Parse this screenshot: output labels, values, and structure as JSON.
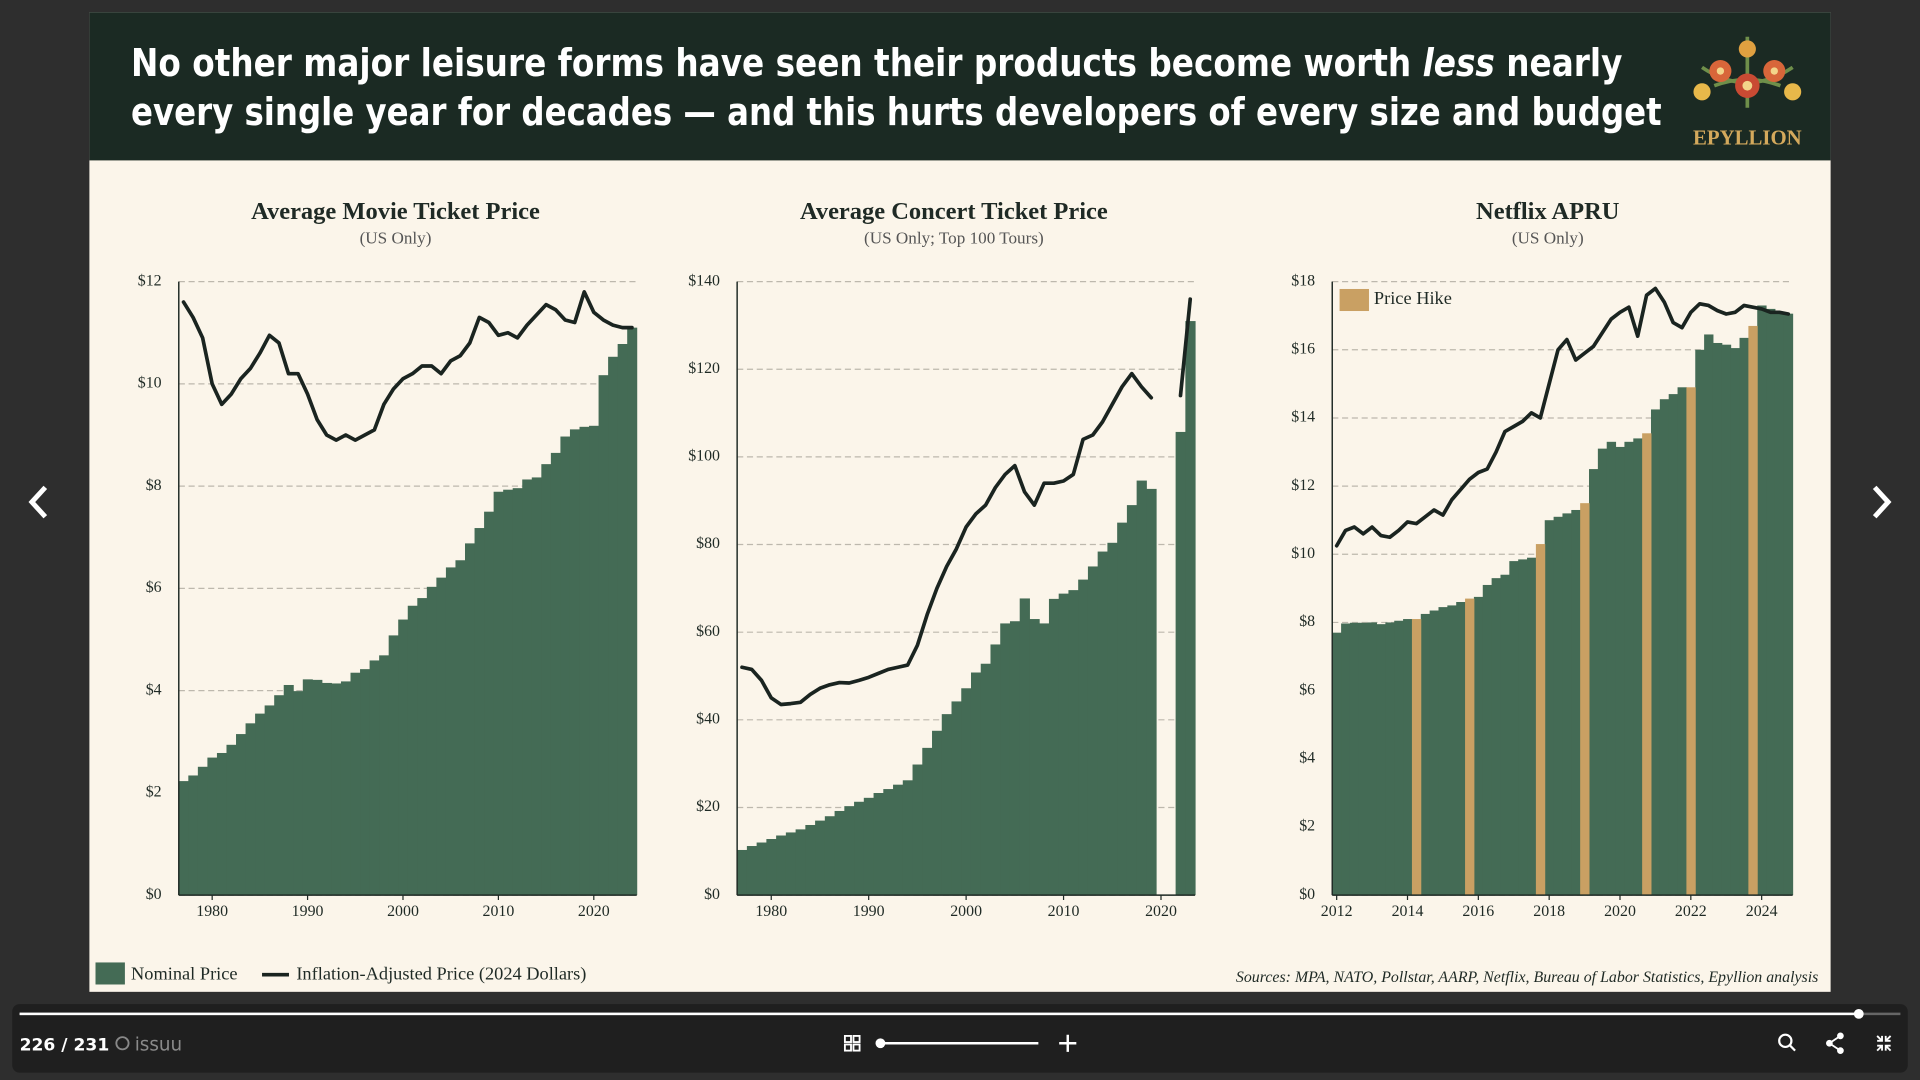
{
  "header": {
    "title_start": "No other major leisure forms have seen their products become worth ",
    "title_emphasis": "less",
    "title_end": " nearly",
    "title_line2": "every single year for decades — and this hurts developers of every size and budget",
    "logo": "EPYLLION"
  },
  "sources": "Sources: MPA, NATO, Pollstar, AARP, Netflix, Bureau of Labor Statistics, Epyllion analysis",
  "viewer": {
    "page_indicator": "226 / 231",
    "brand": "issuu"
  },
  "chart_data": [
    {
      "type": "bar",
      "title": "Average Movie Ticket Price",
      "subtitle": "(US Only)",
      "x": [
        1977,
        1978,
        1979,
        1980,
        1981,
        1982,
        1983,
        1984,
        1985,
        1986,
        1987,
        1988,
        1989,
        1990,
        1991,
        1992,
        1993,
        1994,
        1995,
        1996,
        1997,
        1998,
        1999,
        2000,
        2001,
        2002,
        2003,
        2004,
        2005,
        2006,
        2007,
        2008,
        2009,
        2010,
        2011,
        2012,
        2013,
        2014,
        2015,
        2016,
        2017,
        2018,
        2019,
        2020,
        2021,
        2022,
        2023,
        2024
      ],
      "series": [
        {
          "name": "Nominal Price",
          "type": "bar",
          "color": "#446b55",
          "values": [
            2.23,
            2.34,
            2.51,
            2.69,
            2.78,
            2.94,
            3.15,
            3.36,
            3.55,
            3.71,
            3.91,
            4.11,
            3.99,
            4.22,
            4.21,
            4.15,
            4.14,
            4.18,
            4.35,
            4.42,
            4.59,
            4.69,
            5.08,
            5.39,
            5.66,
            5.81,
            6.03,
            6.21,
            6.41,
            6.55,
            6.88,
            7.18,
            7.5,
            7.89,
            7.93,
            7.96,
            8.13,
            8.17,
            8.43,
            8.65,
            8.97,
            9.11,
            9.16,
            9.18,
            10.17,
            10.53,
            10.78,
            11.1
          ]
        },
        {
          "name": "Inflation-Adjusted Price (2024 Dollars)",
          "type": "line",
          "color": "#1a2420",
          "values": [
            11.6,
            11.3,
            10.9,
            10.0,
            9.6,
            9.8,
            10.1,
            10.3,
            10.6,
            10.95,
            10.8,
            10.2,
            10.2,
            9.8,
            9.3,
            9.0,
            8.9,
            9.0,
            8.9,
            9.0,
            9.1,
            9.6,
            9.9,
            10.1,
            10.2,
            10.35,
            10.35,
            10.2,
            10.45,
            10.55,
            10.8,
            11.3,
            11.2,
            10.95,
            11.0,
            10.9,
            11.15,
            11.35,
            11.55,
            11.45,
            11.25,
            11.2,
            11.8,
            11.4,
            11.25,
            11.15,
            11.1,
            11.1
          ]
        }
      ],
      "xlim": [
        1976.5,
        2024.5
      ],
      "xticks": [
        1980,
        1990,
        2000,
        2010,
        2020
      ],
      "ylim": [
        0,
        12
      ],
      "yticks": [
        {
          "value": 0,
          "label": "$0"
        },
        {
          "value": 2,
          "label": "$2"
        },
        {
          "value": 4,
          "label": "$4"
        },
        {
          "value": 6,
          "label": "$6"
        },
        {
          "value": 8,
          "label": "$8"
        },
        {
          "value": 10,
          "label": "$10"
        },
        {
          "value": 12,
          "label": "$12"
        }
      ],
      "grid": true
    },
    {
      "type": "bar",
      "title": "Average Concert Ticket Price",
      "subtitle": "(US Only; Top 100 Tours)",
      "x": [
        1977,
        1978,
        1979,
        1980,
        1981,
        1982,
        1983,
        1984,
        1985,
        1986,
        1987,
        1988,
        1989,
        1990,
        1991,
        1992,
        1993,
        1994,
        1995,
        1996,
        1997,
        1998,
        1999,
        2000,
        2001,
        2002,
        2003,
        2004,
        2005,
        2006,
        2007,
        2008,
        2009,
        2010,
        2011,
        2012,
        2013,
        2014,
        2015,
        2016,
        2017,
        2018,
        2019,
        2020,
        2021,
        2022,
        2023
      ],
      "series": [
        {
          "name": "Nominal Price",
          "type": "bar",
          "color": "#446b55",
          "values": [
            10.3,
            11.2,
            12,
            12.8,
            13.6,
            14.3,
            15,
            16,
            17,
            18,
            19.2,
            20.3,
            21.3,
            22.2,
            23.3,
            24.2,
            25.2,
            26.2,
            29.8,
            33.6,
            37.5,
            41.3,
            44.2,
            47.2,
            50.8,
            52.8,
            57.2,
            62,
            62.5,
            67.7,
            63,
            62,
            67.6,
            68.8,
            69.6,
            72,
            75,
            78.4,
            80.4,
            85,
            89,
            94.6,
            92.7,
            null,
            null,
            105.7,
            131
          ]
        },
        {
          "name": "Inflation-Adjusted Price (2024 Dollars)",
          "type": "line",
          "color": "#1a2420",
          "values": [
            52,
            51.5,
            49,
            45,
            43.5,
            43.7,
            44,
            45.8,
            47.2,
            48,
            48.5,
            48.4,
            49,
            49.7,
            50.6,
            51.5,
            52,
            52.5,
            57,
            64,
            70,
            75,
            79,
            84,
            87,
            89,
            93,
            96,
            98,
            92,
            89,
            94,
            94,
            94.5,
            96,
            104,
            105,
            108,
            112,
            116,
            119,
            116,
            113.5,
            null,
            null,
            114,
            136
          ]
        }
      ],
      "xlim": [
        1976.5,
        2023.5
      ],
      "xticks": [
        1980,
        1990,
        2000,
        2010,
        2020
      ],
      "ylim": [
        0,
        140
      ],
      "yticks": [
        {
          "value": 0,
          "label": "$0"
        },
        {
          "value": 20,
          "label": "$20"
        },
        {
          "value": 40,
          "label": "$40"
        },
        {
          "value": 60,
          "label": "$60"
        },
        {
          "value": 80,
          "label": "$80"
        },
        {
          "value": 100,
          "label": "$100"
        },
        {
          "value": 120,
          "label": "$120"
        },
        {
          "value": 140,
          "label": "$140"
        }
      ],
      "grid": true
    },
    {
      "type": "bar",
      "title": "Netflix APRU",
      "subtitle": "(US Only)",
      "x": [
        2012,
        2012.25,
        2012.5,
        2012.75,
        2013,
        2013.25,
        2013.5,
        2013.75,
        2014,
        2014.25,
        2014.5,
        2014.75,
        2015,
        2015.25,
        2015.5,
        2015.75,
        2016,
        2016.25,
        2016.5,
        2016.75,
        2017,
        2017.25,
        2017.5,
        2017.75,
        2018,
        2018.25,
        2018.5,
        2018.75,
        2019,
        2019.25,
        2019.5,
        2019.75,
        2020,
        2020.25,
        2020.5,
        2020.75,
        2021,
        2021.25,
        2021.5,
        2021.75,
        2022,
        2022.25,
        2022.5,
        2022.75,
        2023,
        2023.25,
        2023.5,
        2023.75,
        2024,
        2024.25,
        2024.5,
        2024.75
      ],
      "series": [
        {
          "name": "Nominal Price",
          "type": "bar",
          "color": "#446b55",
          "values": [
            7.7,
            7.97,
            7.99,
            7.99,
            8.0,
            7.95,
            8.0,
            8.05,
            8.1,
            null,
            8.25,
            8.35,
            8.45,
            8.5,
            8.6,
            null,
            8.75,
            9.1,
            9.3,
            9.4,
            9.8,
            9.85,
            9.9,
            null,
            11.0,
            11.1,
            11.2,
            11.3,
            null,
            12.5,
            13.1,
            13.3,
            13.15,
            13.3,
            13.4,
            null,
            14.25,
            14.55,
            14.7,
            14.9,
            null,
            16.0,
            16.45,
            16.2,
            16.15,
            16.05,
            16.35,
            null,
            17.3,
            17.2,
            17.1,
            17.06
          ]
        },
        {
          "name": "Price Hike",
          "type": "bar",
          "color": "#c9a063",
          "values": [
            null,
            null,
            null,
            null,
            null,
            null,
            null,
            null,
            null,
            8.1,
            null,
            null,
            null,
            null,
            null,
            8.7,
            null,
            null,
            null,
            null,
            null,
            null,
            null,
            10.3,
            null,
            null,
            null,
            null,
            11.5,
            null,
            null,
            null,
            null,
            null,
            null,
            13.55,
            null,
            null,
            null,
            null,
            14.9,
            null,
            null,
            null,
            null,
            null,
            null,
            16.7,
            null,
            null,
            null,
            null
          ]
        },
        {
          "name": "Inflation-Adjusted Price (2024 Dollars)",
          "type": "line",
          "color": "#1a2420",
          "values": [
            10.25,
            10.7,
            10.8,
            10.6,
            10.8,
            10.55,
            10.5,
            10.7,
            10.95,
            10.9,
            11.1,
            11.3,
            11.15,
            11.6,
            11.9,
            12.2,
            12.4,
            12.5,
            13.0,
            13.6,
            13.75,
            13.9,
            14.15,
            14.0,
            15.0,
            16.0,
            16.3,
            15.7,
            15.9,
            16.1,
            16.5,
            16.9,
            17.1,
            17.25,
            16.4,
            17.6,
            17.8,
            17.4,
            16.8,
            16.65,
            17.1,
            17.35,
            17.3,
            17.15,
            17.05,
            17.1,
            17.3,
            17.25,
            17.2,
            17.1,
            17.1,
            17.05
          ]
        }
      ],
      "legend_series": [
        1
      ],
      "legend": "upper left",
      "xlim": [
        2011.875,
        2024.875
      ],
      "xticks": [
        2012,
        2014,
        2016,
        2018,
        2020,
        2022,
        2024
      ],
      "ylim": [
        0,
        18
      ],
      "yticks": [
        {
          "value": 0,
          "label": "$0"
        },
        {
          "value": 2,
          "label": "$2"
        },
        {
          "value": 4,
          "label": "$4"
        },
        {
          "value": 6,
          "label": "$6"
        },
        {
          "value": 8,
          "label": "$8"
        },
        {
          "value": 10,
          "label": "$10"
        },
        {
          "value": 12,
          "label": "$12"
        },
        {
          "value": 14,
          "label": "$14"
        },
        {
          "value": 16,
          "label": "$16"
        },
        {
          "value": 18,
          "label": "$18"
        }
      ],
      "grid": true
    }
  ]
}
